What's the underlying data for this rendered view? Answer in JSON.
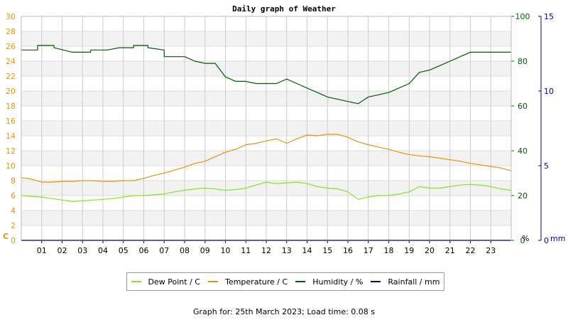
{
  "chart_data": {
    "type": "line",
    "title": "Daily graph of Weather",
    "x": {
      "tick_labels": [
        "01",
        "02",
        "03",
        "04",
        "05",
        "06",
        "07",
        "08",
        "09",
        "10",
        "11",
        "12",
        "13",
        "14",
        "15",
        "16",
        "17",
        "18",
        "19",
        "20",
        "21",
        "22",
        "23"
      ],
      "range": [
        0,
        24
      ]
    },
    "y_left": {
      "unit_label": "C",
      "ticks": [
        "0",
        "2",
        "4",
        "6",
        "8",
        "10",
        "12",
        "14",
        "16",
        "18",
        "20",
        "22",
        "24",
        "26",
        "28",
        "30"
      ],
      "range": [
        0,
        30
      ],
      "color": "#e69500"
    },
    "y_right": {
      "unit_label": "%",
      "ticks": [
        "0",
        "20",
        "40",
        "60",
        "80",
        "100"
      ],
      "range": [
        0,
        100
      ],
      "color": "#005a00"
    },
    "y_far_right": {
      "unit_label": "mm",
      "ticks": [
        "0",
        "5",
        "10",
        "15"
      ],
      "range": [
        0,
        15
      ],
      "color": "#000099"
    },
    "grid": true,
    "series": [
      {
        "name": "Dew Point / C",
        "axis": "left",
        "color": "#7fe61e",
        "points": [
          [
            0,
            6.0
          ],
          [
            0.5,
            5.9
          ],
          [
            1,
            5.8
          ],
          [
            1.5,
            5.6
          ],
          [
            2,
            5.4
          ],
          [
            2.5,
            5.2
          ],
          [
            3,
            5.3
          ],
          [
            3.5,
            5.4
          ],
          [
            4,
            5.5
          ],
          [
            4.5,
            5.6
          ],
          [
            5,
            5.8
          ],
          [
            5.5,
            6.0
          ],
          [
            6,
            6.0
          ],
          [
            6.5,
            6.1
          ],
          [
            7,
            6.2
          ],
          [
            7.5,
            6.5
          ],
          [
            8,
            6.7
          ],
          [
            8.5,
            6.9
          ],
          [
            9,
            7.0
          ],
          [
            9.5,
            6.9
          ],
          [
            10,
            6.7
          ],
          [
            10.5,
            6.8
          ],
          [
            11,
            7.0
          ],
          [
            11.5,
            7.4
          ],
          [
            12,
            7.8
          ],
          [
            12.5,
            7.6
          ],
          [
            13,
            7.7
          ],
          [
            13.5,
            7.8
          ],
          [
            14,
            7.6
          ],
          [
            14.5,
            7.2
          ],
          [
            15,
            7.0
          ],
          [
            15.5,
            6.9
          ],
          [
            16,
            6.5
          ],
          [
            16.5,
            5.5
          ],
          [
            17,
            5.8
          ],
          [
            17.5,
            6.0
          ],
          [
            18,
            6.0
          ],
          [
            18.5,
            6.2
          ],
          [
            19,
            6.5
          ],
          [
            19.5,
            7.2
          ],
          [
            20,
            7.0
          ],
          [
            20.5,
            7.0
          ],
          [
            21,
            7.2
          ],
          [
            21.5,
            7.4
          ],
          [
            22,
            7.5
          ],
          [
            22.5,
            7.4
          ],
          [
            23,
            7.2
          ],
          [
            23.5,
            6.9
          ],
          [
            24,
            6.7
          ]
        ]
      },
      {
        "name": "Temperature / C",
        "axis": "left",
        "color": "#e69500",
        "points": [
          [
            0,
            8.4
          ],
          [
            0.5,
            8.2
          ],
          [
            1,
            7.8
          ],
          [
            1.5,
            7.8
          ],
          [
            2,
            7.9
          ],
          [
            2.5,
            7.9
          ],
          [
            3,
            8.0
          ],
          [
            3.5,
            8.0
          ],
          [
            4,
            7.9
          ],
          [
            4.5,
            7.9
          ],
          [
            5,
            8.0
          ],
          [
            5.5,
            8.0
          ],
          [
            6,
            8.3
          ],
          [
            6.5,
            8.7
          ],
          [
            7,
            9.0
          ],
          [
            7.5,
            9.4
          ],
          [
            8,
            9.8
          ],
          [
            8.5,
            10.3
          ],
          [
            9,
            10.6
          ],
          [
            9.5,
            11.2
          ],
          [
            10,
            11.8
          ],
          [
            10.5,
            12.2
          ],
          [
            11,
            12.8
          ],
          [
            11.5,
            13.0
          ],
          [
            12,
            13.3
          ],
          [
            12.5,
            13.6
          ],
          [
            13,
            13.0
          ],
          [
            13.5,
            13.6
          ],
          [
            14,
            14.1
          ],
          [
            14.5,
            14.0
          ],
          [
            15,
            14.2
          ],
          [
            15.5,
            14.2
          ],
          [
            16,
            13.8
          ],
          [
            16.5,
            13.2
          ],
          [
            17,
            12.8
          ],
          [
            17.5,
            12.5
          ],
          [
            18,
            12.2
          ],
          [
            18.5,
            11.8
          ],
          [
            19,
            11.5
          ],
          [
            19.5,
            11.3
          ],
          [
            20,
            11.2
          ],
          [
            20.5,
            11.0
          ],
          [
            21,
            10.8
          ],
          [
            21.5,
            10.6
          ],
          [
            22,
            10.3
          ],
          [
            22.5,
            10.1
          ],
          [
            23,
            9.9
          ],
          [
            23.5,
            9.7
          ],
          [
            24,
            9.3
          ]
        ]
      },
      {
        "name": "Humidity / %",
        "axis": "right",
        "color": "#005a00",
        "points": [
          [
            0,
            85
          ],
          [
            0.8,
            85
          ],
          [
            0.8,
            87
          ],
          [
            1.6,
            87
          ],
          [
            1.6,
            86
          ],
          [
            2.5,
            84
          ],
          [
            3.4,
            84
          ],
          [
            3.4,
            85
          ],
          [
            4.2,
            85
          ],
          [
            4.8,
            86
          ],
          [
            5.5,
            86
          ],
          [
            5.5,
            87
          ],
          [
            6.2,
            87
          ],
          [
            6.2,
            86
          ],
          [
            7,
            85
          ],
          [
            7,
            82
          ],
          [
            8,
            82
          ],
          [
            8.5,
            80
          ],
          [
            9,
            79
          ],
          [
            9.5,
            79
          ],
          [
            10,
            73
          ],
          [
            10.5,
            71
          ],
          [
            11,
            71
          ],
          [
            11.5,
            70
          ],
          [
            12,
            70
          ],
          [
            12.5,
            70
          ],
          [
            13,
            72
          ],
          [
            13.5,
            70
          ],
          [
            14,
            68
          ],
          [
            14.5,
            66
          ],
          [
            15,
            64
          ],
          [
            15.5,
            63
          ],
          [
            16,
            62
          ],
          [
            16.5,
            61
          ],
          [
            17,
            64
          ],
          [
            17.5,
            65
          ],
          [
            18,
            66
          ],
          [
            18.5,
            68
          ],
          [
            19,
            70
          ],
          [
            19.5,
            75
          ],
          [
            20,
            76
          ],
          [
            20.5,
            78
          ],
          [
            21,
            80
          ],
          [
            21.5,
            82
          ],
          [
            22,
            84
          ],
          [
            22.5,
            84
          ],
          [
            23,
            84
          ],
          [
            24,
            84
          ]
        ]
      },
      {
        "name": "Rainfall / mm",
        "axis": "far_right",
        "color": "#000099",
        "points": [
          [
            0,
            0
          ],
          [
            24,
            0
          ]
        ]
      }
    ],
    "legend_placement": "bottom-center"
  },
  "footer": "Graph for: 25th March 2023; Load time: 0.08 s"
}
